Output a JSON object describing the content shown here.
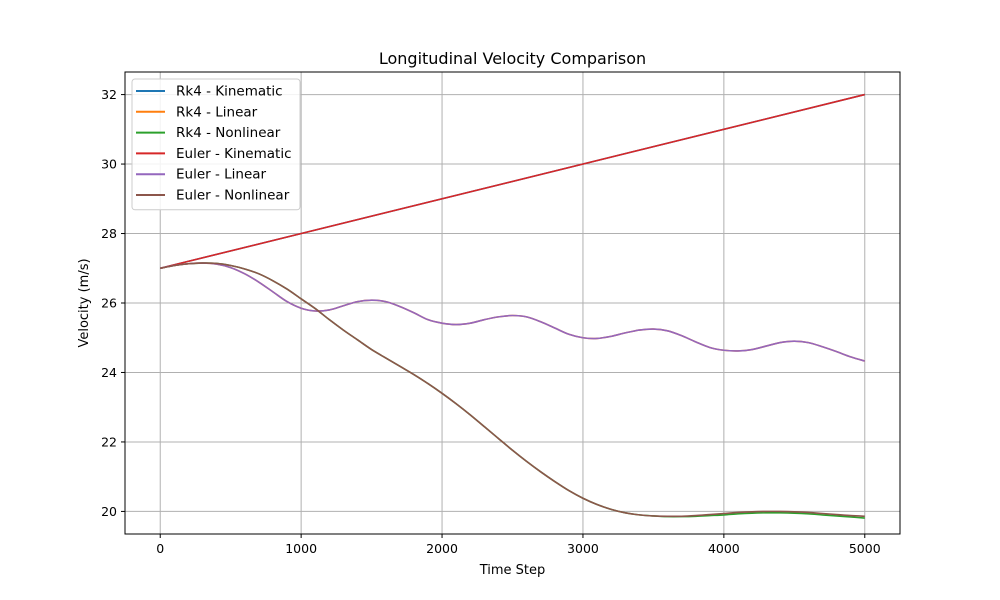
{
  "chart_data": {
    "type": "line",
    "title": "Longitudinal Velocity Comparison",
    "xlabel": "Time Step",
    "ylabel": "Velocity (m/s)",
    "xlim": [
      -250,
      5250
    ],
    "ylim": [
      19.35,
      32.65
    ],
    "xticks": [
      0,
      1000,
      2000,
      3000,
      4000,
      5000
    ],
    "yticks": [
      20,
      22,
      24,
      26,
      28,
      30,
      32
    ],
    "grid": true,
    "legend_position": "top-left",
    "series": [
      {
        "name": "Rk4 - Kinematic",
        "color": "#1f77b4",
        "x": [
          0,
          5000
        ],
        "y": [
          27.0,
          32.0
        ]
      },
      {
        "name": "Rk4 - Linear",
        "color": "#ff7f0e",
        "x": [
          0,
          100,
          200,
          300,
          400,
          500,
          600,
          700,
          800,
          900,
          1000,
          1100,
          1200,
          1300,
          1400,
          1500,
          1600,
          1700,
          1800,
          1900,
          2000,
          2100,
          2200,
          2300,
          2400,
          2500,
          2600,
          2700,
          2800,
          2900,
          3000,
          3100,
          3200,
          3300,
          3400,
          3500,
          3600,
          3700,
          3800,
          3900,
          4000,
          4100,
          4200,
          4300,
          4400,
          4500,
          4600,
          4700,
          4800,
          4900,
          5000
        ],
        "y": [
          27.0,
          27.08,
          27.13,
          27.15,
          27.12,
          27.02,
          26.84,
          26.6,
          26.32,
          26.04,
          25.85,
          25.77,
          25.8,
          25.92,
          26.04,
          26.08,
          26.04,
          25.9,
          25.72,
          25.52,
          25.42,
          25.38,
          25.42,
          25.52,
          25.6,
          25.64,
          25.6,
          25.46,
          25.28,
          25.1,
          25.0,
          24.98,
          25.04,
          25.14,
          25.22,
          25.25,
          25.2,
          25.06,
          24.88,
          24.72,
          24.64,
          24.62,
          24.66,
          24.76,
          24.86,
          24.9,
          24.86,
          24.74,
          24.6,
          24.45,
          24.33
        ]
      },
      {
        "name": "Rk4 - Nonlinear",
        "color": "#2ca02c",
        "x": [
          0,
          100,
          200,
          300,
          400,
          500,
          600,
          700,
          800,
          900,
          1000,
          1100,
          1200,
          1300,
          1400,
          1500,
          1600,
          1700,
          1800,
          1900,
          2000,
          2100,
          2200,
          2300,
          2400,
          2500,
          2600,
          2700,
          2800,
          2900,
          3000,
          3100,
          3200,
          3300,
          3400,
          3500,
          3600,
          3700,
          3800,
          3900,
          4000,
          4100,
          4200,
          4300,
          4400,
          4500,
          4600,
          4700,
          4800,
          4900,
          5000
        ],
        "y": [
          27.0,
          27.08,
          27.13,
          27.15,
          27.14,
          27.08,
          26.98,
          26.84,
          26.64,
          26.4,
          26.12,
          25.84,
          25.52,
          25.22,
          24.94,
          24.66,
          24.42,
          24.18,
          23.94,
          23.68,
          23.4,
          23.1,
          22.78,
          22.44,
          22.1,
          21.76,
          21.44,
          21.14,
          20.86,
          20.6,
          20.38,
          20.2,
          20.06,
          19.96,
          19.9,
          19.87,
          19.85,
          19.85,
          19.86,
          19.88,
          19.9,
          19.93,
          19.95,
          19.96,
          19.96,
          19.95,
          19.93,
          19.9,
          19.87,
          19.84,
          19.81
        ]
      },
      {
        "name": "Euler - Kinematic",
        "color": "#d62728",
        "x": [
          0,
          5000
        ],
        "y": [
          27.0,
          32.0
        ]
      },
      {
        "name": "Euler - Linear",
        "color": "#9467bd",
        "x": [
          0,
          100,
          200,
          300,
          400,
          500,
          600,
          700,
          800,
          900,
          1000,
          1100,
          1200,
          1300,
          1400,
          1500,
          1600,
          1700,
          1800,
          1900,
          2000,
          2100,
          2200,
          2300,
          2400,
          2500,
          2600,
          2700,
          2800,
          2900,
          3000,
          3100,
          3200,
          3300,
          3400,
          3500,
          3600,
          3700,
          3800,
          3900,
          4000,
          4100,
          4200,
          4300,
          4400,
          4500,
          4600,
          4700,
          4800,
          4900,
          5000
        ],
        "y": [
          27.0,
          27.08,
          27.13,
          27.15,
          27.12,
          27.02,
          26.84,
          26.6,
          26.32,
          26.04,
          25.85,
          25.77,
          25.8,
          25.92,
          26.04,
          26.08,
          26.04,
          25.9,
          25.72,
          25.52,
          25.42,
          25.38,
          25.42,
          25.52,
          25.6,
          25.64,
          25.6,
          25.46,
          25.28,
          25.1,
          25.0,
          24.98,
          25.04,
          25.14,
          25.22,
          25.25,
          25.2,
          25.06,
          24.88,
          24.72,
          24.64,
          24.62,
          24.66,
          24.76,
          24.86,
          24.9,
          24.86,
          24.74,
          24.6,
          24.45,
          24.33
        ]
      },
      {
        "name": "Euler - Nonlinear",
        "color": "#8c564b",
        "x": [
          0,
          100,
          200,
          300,
          400,
          500,
          600,
          700,
          800,
          900,
          1000,
          1100,
          1200,
          1300,
          1400,
          1500,
          1600,
          1700,
          1800,
          1900,
          2000,
          2100,
          2200,
          2300,
          2400,
          2500,
          2600,
          2700,
          2800,
          2900,
          3000,
          3100,
          3200,
          3300,
          3400,
          3500,
          3600,
          3700,
          3800,
          3900,
          4000,
          4100,
          4200,
          4300,
          4400,
          4500,
          4600,
          4700,
          4800,
          4900,
          5000
        ],
        "y": [
          27.0,
          27.08,
          27.13,
          27.15,
          27.14,
          27.08,
          26.98,
          26.84,
          26.64,
          26.4,
          26.12,
          25.84,
          25.52,
          25.22,
          24.94,
          24.66,
          24.42,
          24.18,
          23.94,
          23.68,
          23.4,
          23.1,
          22.78,
          22.44,
          22.1,
          21.76,
          21.44,
          21.14,
          20.86,
          20.6,
          20.38,
          20.2,
          20.06,
          19.96,
          19.9,
          19.87,
          19.86,
          19.86,
          19.88,
          19.91,
          19.94,
          19.97,
          19.99,
          20.0,
          20.0,
          19.99,
          19.97,
          19.94,
          19.91,
          19.88,
          19.86
        ]
      }
    ]
  }
}
